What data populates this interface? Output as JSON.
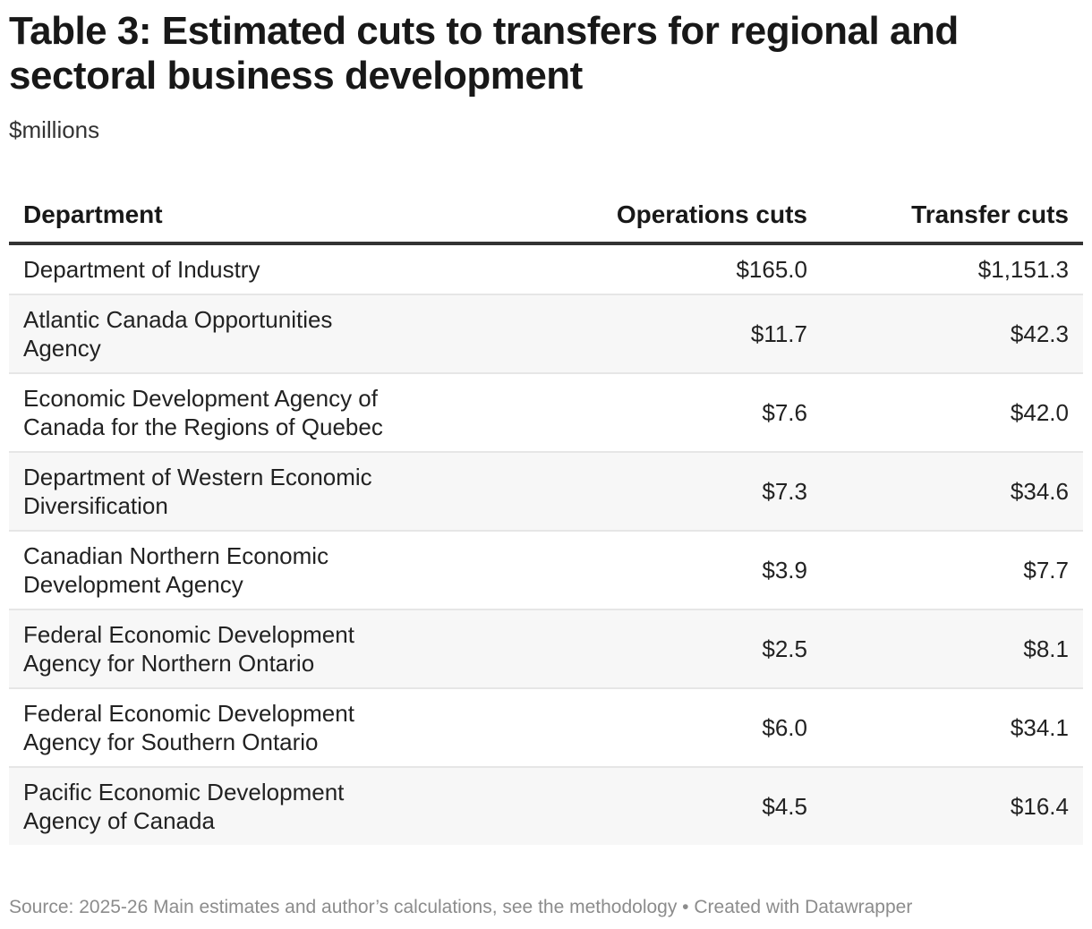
{
  "chart_data": {
    "type": "table",
    "title": "Table 3: Estimated cuts to transfers for regional and sectoral business development",
    "subtitle": "$millions",
    "columns": [
      "Department",
      "Operations cuts",
      "Transfer cuts"
    ],
    "rows": [
      {
        "department": "Department of Industry",
        "operations": "$165.0",
        "transfer": "$1,151.3"
      },
      {
        "department": "Atlantic Canada Opportunities Agency",
        "operations": "$11.7",
        "transfer": "$42.3"
      },
      {
        "department": "Economic Development Agency of Canada for the Regions of Quebec",
        "operations": "$7.6",
        "transfer": "$42.0"
      },
      {
        "department": "Department of Western Economic Diversification",
        "operations": "$7.3",
        "transfer": "$34.6"
      },
      {
        "department": "Canadian Northern Economic Development Agency",
        "operations": "$3.9",
        "transfer": "$7.7"
      },
      {
        "department": "Federal Economic Development Agency for Northern Ontario",
        "operations": "$2.5",
        "transfer": "$8.1"
      },
      {
        "department": "Federal Economic Development Agency for Southern Ontario",
        "operations": "$6.0",
        "transfer": "$34.1"
      },
      {
        "department": "Pacific Economic Development Agency of Canada",
        "operations": "$4.5",
        "transfer": "$16.4"
      }
    ],
    "source": "Source: 2025-26 Main estimates and author’s calculations, see the methodology • Created with Datawrapper"
  }
}
